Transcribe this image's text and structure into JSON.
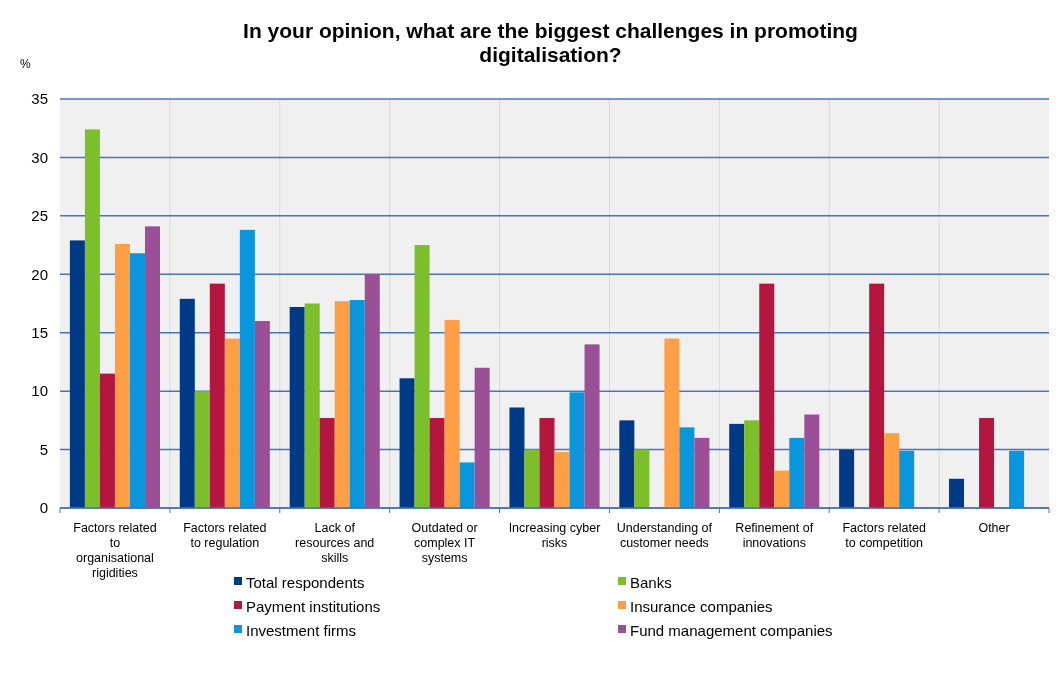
{
  "chart_data": {
    "type": "bar",
    "title": "In your opinion, what are the biggest challenges in promoting digitalisation?",
    "ylabel": "%",
    "categories": [
      "Factors related to organisational rigidities",
      "Factors related to regulation",
      "Lack of resources and skills",
      "Outdated or complex IT systems",
      "Increasing cyber risks",
      "Understanding of customer needs",
      "Refinement of innovations",
      "Factors related to competition",
      "Other"
    ],
    "series": [
      {
        "name": "Total respondents",
        "color": "#003a87",
        "values": [
          22.9,
          17.9,
          17.2,
          11.1,
          8.6,
          7.5,
          7.2,
          5,
          2.5
        ]
      },
      {
        "name": "Banks",
        "color": "#7bbf2a",
        "values": [
          32.4,
          10,
          17.5,
          22.5,
          5,
          5,
          7.5,
          null,
          null
        ]
      },
      {
        "name": "Payment institutions",
        "color": "#b5163f",
        "values": [
          11.5,
          19.2,
          7.7,
          7.7,
          7.7,
          null,
          19.2,
          19.2,
          7.7
        ]
      },
      {
        "name": "Insurance companies",
        "color": "#ff9f45",
        "values": [
          22.6,
          14.5,
          17.7,
          16.1,
          4.8,
          14.5,
          3.2,
          6.4,
          null
        ]
      },
      {
        "name": "Investment firms",
        "color": "#0a96dd",
        "values": [
          21.8,
          23.8,
          17.8,
          3.9,
          9.9,
          6.9,
          6,
          4.9,
          4.9
        ]
      },
      {
        "name": "Fund management companies",
        "color": "#9b4f96",
        "values": [
          24.1,
          16,
          20,
          12,
          14,
          6,
          8,
          null,
          null
        ]
      }
    ],
    "ylim": [
      0,
      35
    ],
    "yticks": [
      0,
      5,
      10,
      15,
      20,
      25,
      30,
      35
    ],
    "grid": "y",
    "legend": "bottom"
  }
}
